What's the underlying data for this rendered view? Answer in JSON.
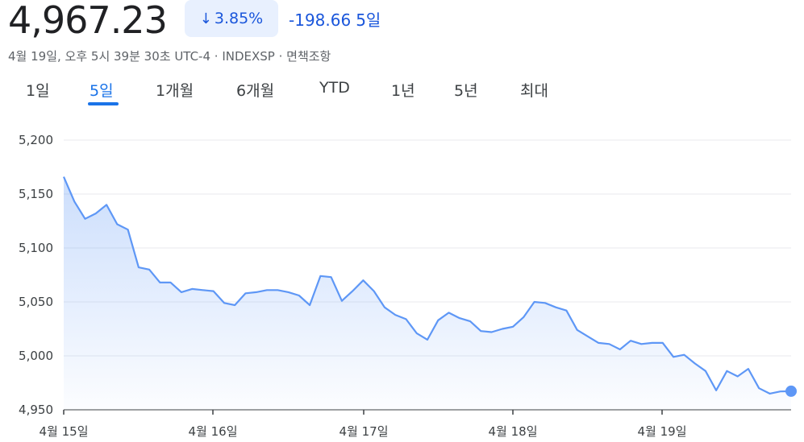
{
  "quote": {
    "price": "4,967.23",
    "change_pct": "3.85%",
    "change_abs": "-198.66",
    "change_period": "5일",
    "arrow_icon": "arrow-down-icon",
    "meta": "4월 19일, 오후 5시 39분 30초 UTC-4 · INDEXSP · 면책조항",
    "accent_color": "#1a73e8",
    "negative_color": "#1a56db"
  },
  "tabs": [
    {
      "label": "1일",
      "active": false
    },
    {
      "label": "5일",
      "active": true
    },
    {
      "label": "1개월",
      "active": false
    },
    {
      "label": "6개월",
      "active": false
    },
    {
      "label": "YTD",
      "active": false
    },
    {
      "label": "1년",
      "active": false
    },
    {
      "label": "5년",
      "active": false
    },
    {
      "label": "최대",
      "active": false
    }
  ],
  "chart_data": {
    "type": "area",
    "title": "",
    "xlabel": "",
    "ylabel": "",
    "ylim": [
      4950,
      5200
    ],
    "yticks": [
      "5,200",
      "5,150",
      "5,100",
      "5,050",
      "5,000",
      "4,950"
    ],
    "ytick_values": [
      5200,
      5150,
      5100,
      5050,
      5000,
      4950
    ],
    "xticks": [
      "4월 15일",
      "4월 16일",
      "4월 17일",
      "4월 18일",
      "4월 19일"
    ],
    "grid": true,
    "line_color": "#5e97f6",
    "series": [
      {
        "values": [
          5166,
          5143,
          5127,
          5132,
          5140,
          5122,
          5117,
          5082,
          5080,
          5068,
          5068,
          5059,
          5062,
          5061,
          5060,
          5049,
          5047,
          5058,
          5059,
          5061,
          5061,
          5059,
          5056,
          5047,
          5074,
          5073,
          5051,
          5060,
          5070,
          5060,
          5045,
          5038,
          5034,
          5021,
          5015,
          5033,
          5040,
          5035,
          5032,
          5023,
          5022,
          5025,
          5027,
          5036,
          5050,
          5049,
          5045,
          5042,
          5024,
          5018,
          5012,
          5011,
          5006,
          5014,
          5011,
          5012,
          5012,
          4999,
          5001,
          4993,
          4986,
          4968,
          4986,
          4981,
          4988,
          4970,
          4965,
          4967,
          4967.23
        ]
      }
    ]
  }
}
